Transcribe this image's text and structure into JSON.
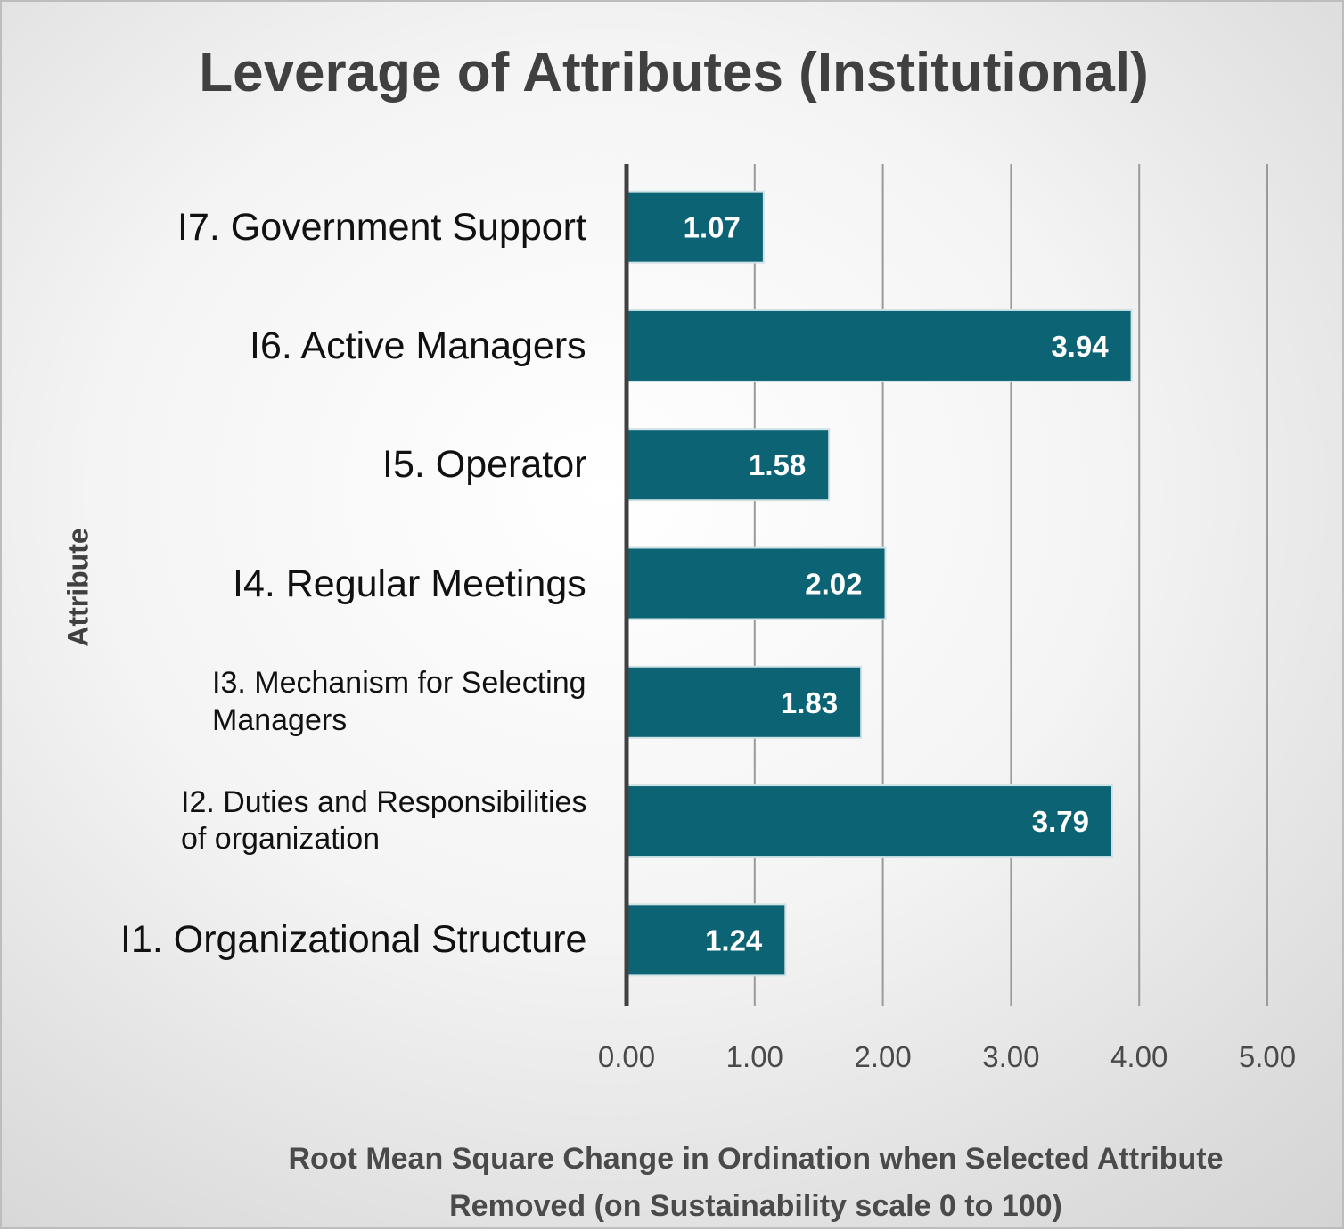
{
  "chart_data": {
    "type": "bar",
    "orientation": "horizontal",
    "title": "Leverage of Attributes (Institutional)",
    "ylabel": "Attribute",
    "xlabel_lines": [
      "Root Mean Square Change in Ordination when Selected Attribute",
      "Removed (on Sustainability scale 0 to 100)"
    ],
    "categories": [
      [
        "I7. Government Support"
      ],
      [
        "I6. Active Managers"
      ],
      [
        "I5. Operator"
      ],
      [
        "I4. Regular Meetings"
      ],
      [
        "I3. Mechanism for Selecting",
        "Managers"
      ],
      [
        "I2. Duties and Responsibilities",
        "of organization"
      ],
      [
        "I1. Organizational Structure"
      ]
    ],
    "values": [
      1.07,
      3.94,
      1.58,
      2.02,
      1.83,
      3.79,
      1.24
    ],
    "value_labels": [
      "1.07",
      "3.94",
      "1.58",
      "2.02",
      "1.83",
      "3.79",
      "1.24"
    ],
    "xlim": [
      0,
      5
    ],
    "xticks": [
      "0.00",
      "1.00",
      "2.00",
      "3.00",
      "4.00",
      "5.00"
    ],
    "grid": true,
    "legend": "none",
    "bar_color": "#0b6374",
    "bar_edge_color": "#cfe3e6",
    "value_label_color": "#ffffff"
  }
}
